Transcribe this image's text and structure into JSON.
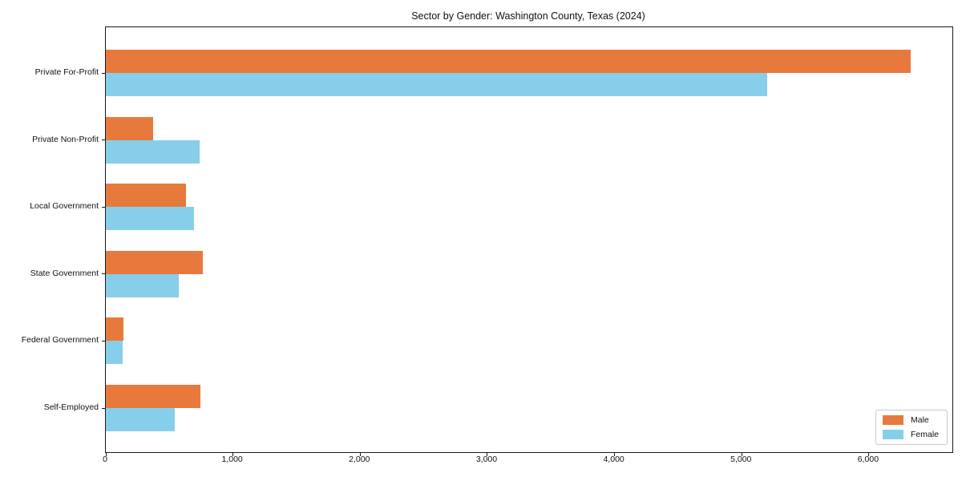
{
  "chart_data": {
    "type": "bar",
    "orientation": "horizontal",
    "title": "Sector by Gender: Washington County, Texas (2024)",
    "categories": [
      "Private For-Profit",
      "Private Non-Profit",
      "Local Government",
      "State Government",
      "Federal Government",
      "Self-Employed"
    ],
    "series": [
      {
        "name": "Male",
        "color": "#E8793D",
        "values": [
          6330,
          375,
          630,
          760,
          140,
          745
        ]
      },
      {
        "name": "Female",
        "color": "#87CEEB",
        "values": [
          5200,
          740,
          695,
          575,
          130,
          540
        ]
      }
    ],
    "xlabel": "",
    "ylabel": "",
    "xlim": [
      0,
      6656
    ],
    "xticks": [
      {
        "value": 0,
        "label": "0"
      },
      {
        "value": 1000,
        "label": "1,000"
      },
      {
        "value": 2000,
        "label": "2,000"
      },
      {
        "value": 3000,
        "label": "3,000"
      },
      {
        "value": 4000,
        "label": "4,000"
      },
      {
        "value": 5000,
        "label": "5,000"
      },
      {
        "value": 6000,
        "label": "6,000"
      }
    ],
    "grid": false,
    "legend_position": "lower right",
    "legend_labels": [
      "Male",
      "Female"
    ]
  }
}
